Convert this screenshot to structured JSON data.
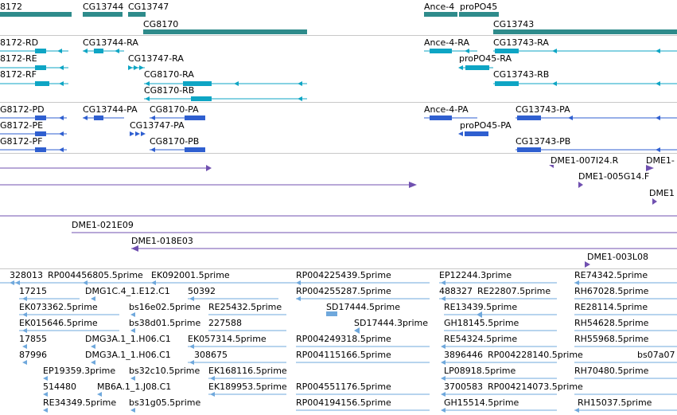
{
  "colors": {
    "gene": "#2e8b8b",
    "mrna": "#0ea5c4",
    "protein": "#2f5fd0",
    "clone": "#7050b0",
    "est": "#6fa8dc"
  },
  "genes": {
    "labels": [
      "8172",
      "CG13744",
      "CG13747",
      "CG8170",
      "Ance-4",
      "proPO45",
      "CG13743"
    ]
  },
  "transcripts": {
    "labels": [
      "8172-RD",
      "CG13744-RA",
      "8172-RE",
      "CG13747-RA",
      "8172-RF",
      "CG8170-RA",
      "CG8170-RB",
      "Ance-4-RA",
      "proPO45-RA",
      "CG13743-RA",
      "CG13743-RB"
    ]
  },
  "proteins": {
    "labels": [
      "G8172-PD",
      "CG13744-PA",
      "CG8170-PA",
      "G8172-PE",
      "CG13747-PA",
      "G8172-PF",
      "CG8170-PB",
      "Ance-4-PA",
      "proPO45-PA",
      "CG13743-PA",
      "CG13743-PB"
    ]
  },
  "clones": {
    "labels": [
      "DME1-007I24.R",
      "DME1-",
      "DME1-005G14.F",
      "DME1",
      "DME1-021E09",
      "DME1-018E03",
      "DME1-003L08"
    ]
  },
  "ests": {
    "labels": [
      "328013",
      "RP004456805.5prime",
      "EK092001.5prime",
      "RP004225439.5prime",
      "EP12244.3prime",
      "RE74342.5prime",
      "17215",
      "DMG1C.4_1.E12.C1",
      "50392",
      "RP004255287.5prime",
      "488327",
      "RE22807.5prime",
      "RH67028.5prime",
      "EK073362.5prime",
      "bs16e02.5prime",
      "RE25432.5prime",
      "SD17444.5prime",
      "RE13439.5prime",
      "RE28114.5prime",
      "EK015646.5prime",
      "bs38d01.5prime",
      "227588",
      "SD17444.3prime",
      "GH18145.5prime",
      "RH54628.5prime",
      "17855",
      "DMG3A.1_1.H06.C1",
      "EK057314.5prime",
      "RP004249318.5prime",
      "RE54324.5prime",
      "RH55968.5prime",
      "87996",
      "308675",
      "RP004115166.5prime",
      "3896446",
      "RP004228140.5prime",
      "bs07a07",
      "EP19359.3prime",
      "bs32c10.5prime",
      "EK168116.5prime",
      "LP08918.5prime",
      "RH70480.5prime",
      "514480",
      "MB6A.1_1.J08.C1",
      "EK189953.5prime",
      "RP004551176.5prime",
      "3700583",
      "RP004214073.5prime",
      "RE34349.5prime",
      "bs31g05.5prime",
      "RP004194156.5prime",
      "GH15514.5prime",
      "RH15037.5prime"
    ]
  }
}
